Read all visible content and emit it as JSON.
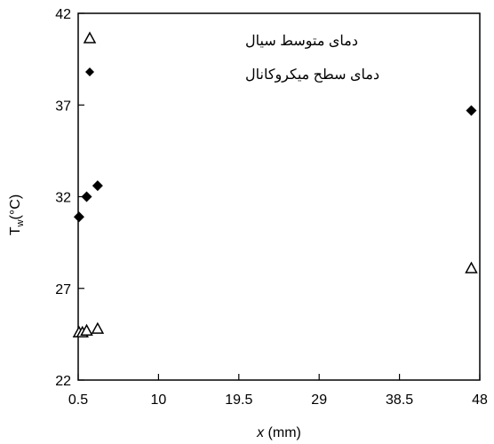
{
  "chart_data": {
    "type": "scatter",
    "xlabel_italic": "x",
    "xlabel_unit": " (mm)",
    "ylabel_main": "T",
    "ylabel_sub": "w",
    "ylabel_unit": "(°C)",
    "xlim": [
      0.5,
      48
    ],
    "ylim": [
      22,
      42
    ],
    "xticks": [
      0.5,
      10,
      19.5,
      29,
      38.5,
      48
    ],
    "xtick_labels": [
      "0.5",
      "10",
      "19.5",
      "29",
      "38.5",
      "48"
    ],
    "yticks": [
      22,
      27,
      32,
      37,
      42
    ],
    "ytick_labels": [
      "22",
      "27",
      "32",
      "37",
      "42"
    ],
    "grid": false,
    "legend_position": "top-left",
    "series": [
      {
        "name": "دمای متوسط سیال",
        "marker": "triangle-open",
        "color": "#000000",
        "points": [
          {
            "x": 0.6,
            "y": 24.6
          },
          {
            "x": 1.0,
            "y": 24.6
          },
          {
            "x": 1.5,
            "y": 24.7
          },
          {
            "x": 2.8,
            "y": 24.8
          },
          {
            "x": 47.0,
            "y": 28.1
          }
        ]
      },
      {
        "name": "دمای سطح میکروکانال",
        "marker": "diamond-filled",
        "color": "#000000",
        "points": [
          {
            "x": 0.6,
            "y": 30.9
          },
          {
            "x": 1.5,
            "y": 32.0
          },
          {
            "x": 2.8,
            "y": 32.6
          },
          {
            "x": 47.0,
            "y": 36.7
          }
        ]
      }
    ]
  }
}
